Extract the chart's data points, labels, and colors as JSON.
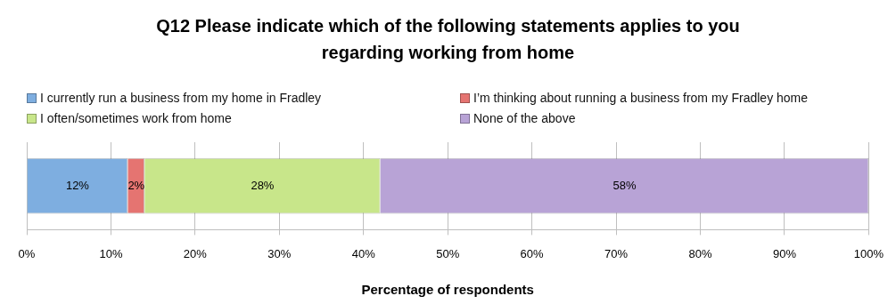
{
  "chart_data": {
    "type": "bar",
    "orientation": "horizontal",
    "stacked": true,
    "title": "Q12 Please indicate which of the following statements applies to you regarding working from home",
    "xlabel": "Percentage of respondents",
    "categories": [
      null
    ],
    "series": [
      {
        "name": "I currently run a business from my home in Fradley",
        "color": "#7eaee0",
        "values": [
          12
        ],
        "value_labels": [
          "12%"
        ]
      },
      {
        "name": "I’m thinking about running a business from my Fradley home",
        "color": "#e57471",
        "values": [
          2
        ],
        "value_labels": [
          "2%"
        ]
      },
      {
        "name": "I often/sometimes work from home",
        "color": "#c8e68a",
        "values": [
          28
        ],
        "value_labels": [
          "28%"
        ]
      },
      {
        "name": "None of the above",
        "color": "#b8a3d6",
        "values": [
          58
        ],
        "value_labels": [
          "58%"
        ]
      }
    ],
    "xlim": [
      0,
      100
    ],
    "xticks": [
      {
        "value": 0,
        "label": "0%"
      },
      {
        "value": 10,
        "label": "10%"
      },
      {
        "value": 20,
        "label": "20%"
      },
      {
        "value": 30,
        "label": "30%"
      },
      {
        "value": 40,
        "label": "40%"
      },
      {
        "value": 50,
        "label": "50%"
      },
      {
        "value": 60,
        "label": "60%"
      },
      {
        "value": 70,
        "label": "70%"
      },
      {
        "value": 80,
        "label": "80%"
      },
      {
        "value": 90,
        "label": "90%"
      },
      {
        "value": 100,
        "label": "100%"
      }
    ],
    "grid": "x",
    "legend": "top"
  }
}
